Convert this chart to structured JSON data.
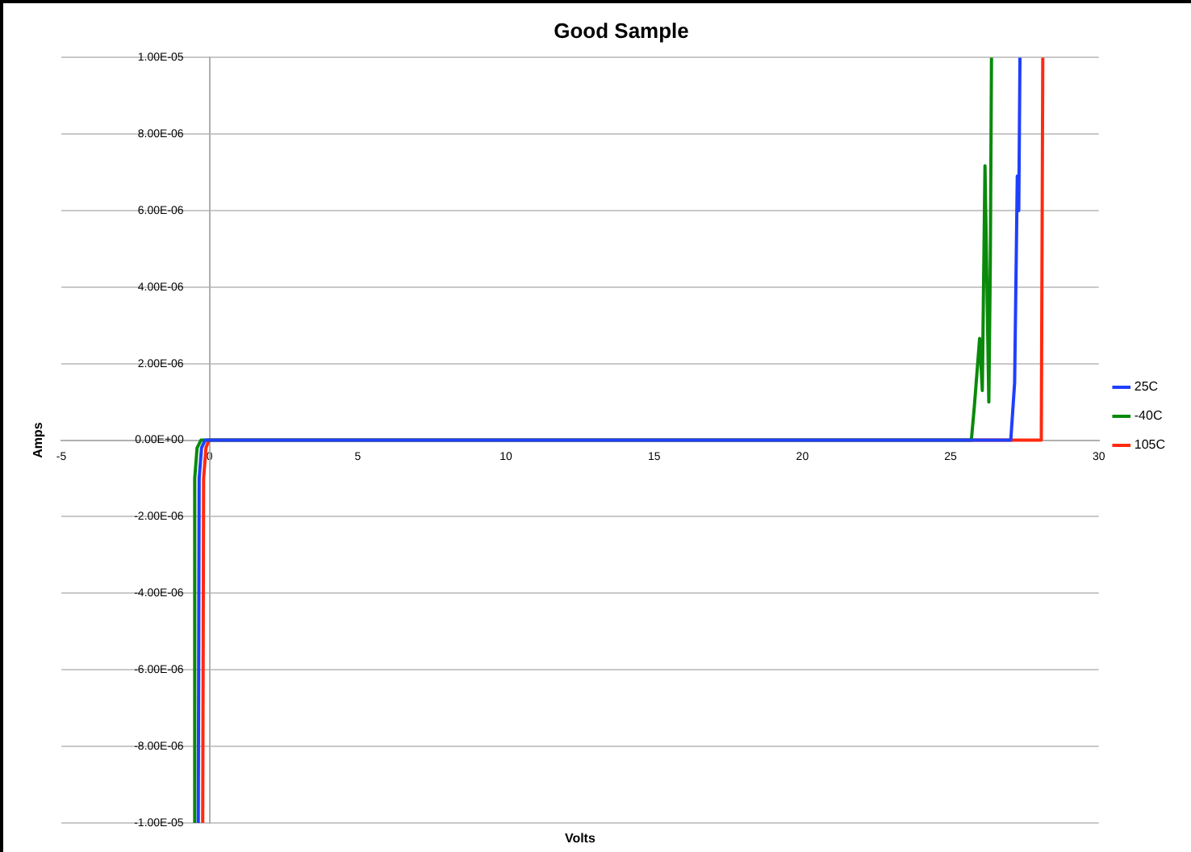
{
  "chart_data": {
    "type": "line",
    "title": "Good Sample",
    "xlabel": "Volts",
    "ylabel": "Amps",
    "xlim": [
      -5,
      30
    ],
    "xticks": [
      -5,
      0,
      5,
      10,
      15,
      20,
      25,
      30
    ],
    "ylim": [
      -1e-05,
      1e-05
    ],
    "yticks": [
      {
        "value": -1e-05,
        "label": "-1.00E-05"
      },
      {
        "value": -8e-06,
        "label": "-8.00E-06"
      },
      {
        "value": -6e-06,
        "label": "-6.00E-06"
      },
      {
        "value": -4e-06,
        "label": "-4.00E-06"
      },
      {
        "value": -2e-06,
        "label": "-2.00E-06"
      },
      {
        "value": 0,
        "label": "0.00E+00"
      },
      {
        "value": 2e-06,
        "label": "2.00E-06"
      },
      {
        "value": 4e-06,
        "label": "4.00E-06"
      },
      {
        "value": 6e-06,
        "label": "6.00E-06"
      },
      {
        "value": 8e-06,
        "label": "8.00E-06"
      },
      {
        "value": 1e-05,
        "label": "1.00E-05"
      }
    ],
    "grid": "y",
    "legend": "right",
    "marker": "none",
    "line_style": "solid",
    "series": [
      {
        "name": "25C",
        "color": "#1f3fff",
        "x": [
          -0.38,
          -0.35,
          -0.27,
          -0.15,
          5,
          10,
          15,
          20,
          25,
          27.03,
          27.16,
          27.25,
          27.3,
          27.34
        ],
        "values": [
          -1e-05,
          -1e-06,
          -2e-07,
          0,
          0,
          0,
          0,
          0,
          0,
          0,
          1.5e-06,
          6.9e-06,
          6e-06,
          1e-05
        ]
      },
      {
        "name": "-40C",
        "color": "#0a8a0a",
        "x": [
          -0.53,
          -0.5,
          -0.42,
          -0.29,
          5,
          10,
          15,
          20,
          25,
          25.7,
          25.8,
          25.98,
          26.07,
          26.16,
          26.29,
          26.34,
          26.38
        ],
        "values": [
          -1e-05,
          -1e-06,
          -2e-07,
          0,
          0,
          0,
          0,
          0,
          0,
          0,
          8.7e-07,
          2.66e-06,
          1.3e-06,
          7.17e-06,
          1e-06,
          4.7e-06,
          1e-05
        ]
      },
      {
        "name": "105C",
        "color": "#ff2a10",
        "x": [
          -0.23,
          -0.2,
          -0.12,
          -0.02,
          5,
          10,
          15,
          20,
          25,
          28.06,
          28.11
        ],
        "values": [
          -1e-05,
          -1e-06,
          -2e-07,
          0,
          0,
          0,
          0,
          0,
          0,
          0,
          1e-05
        ]
      }
    ]
  }
}
